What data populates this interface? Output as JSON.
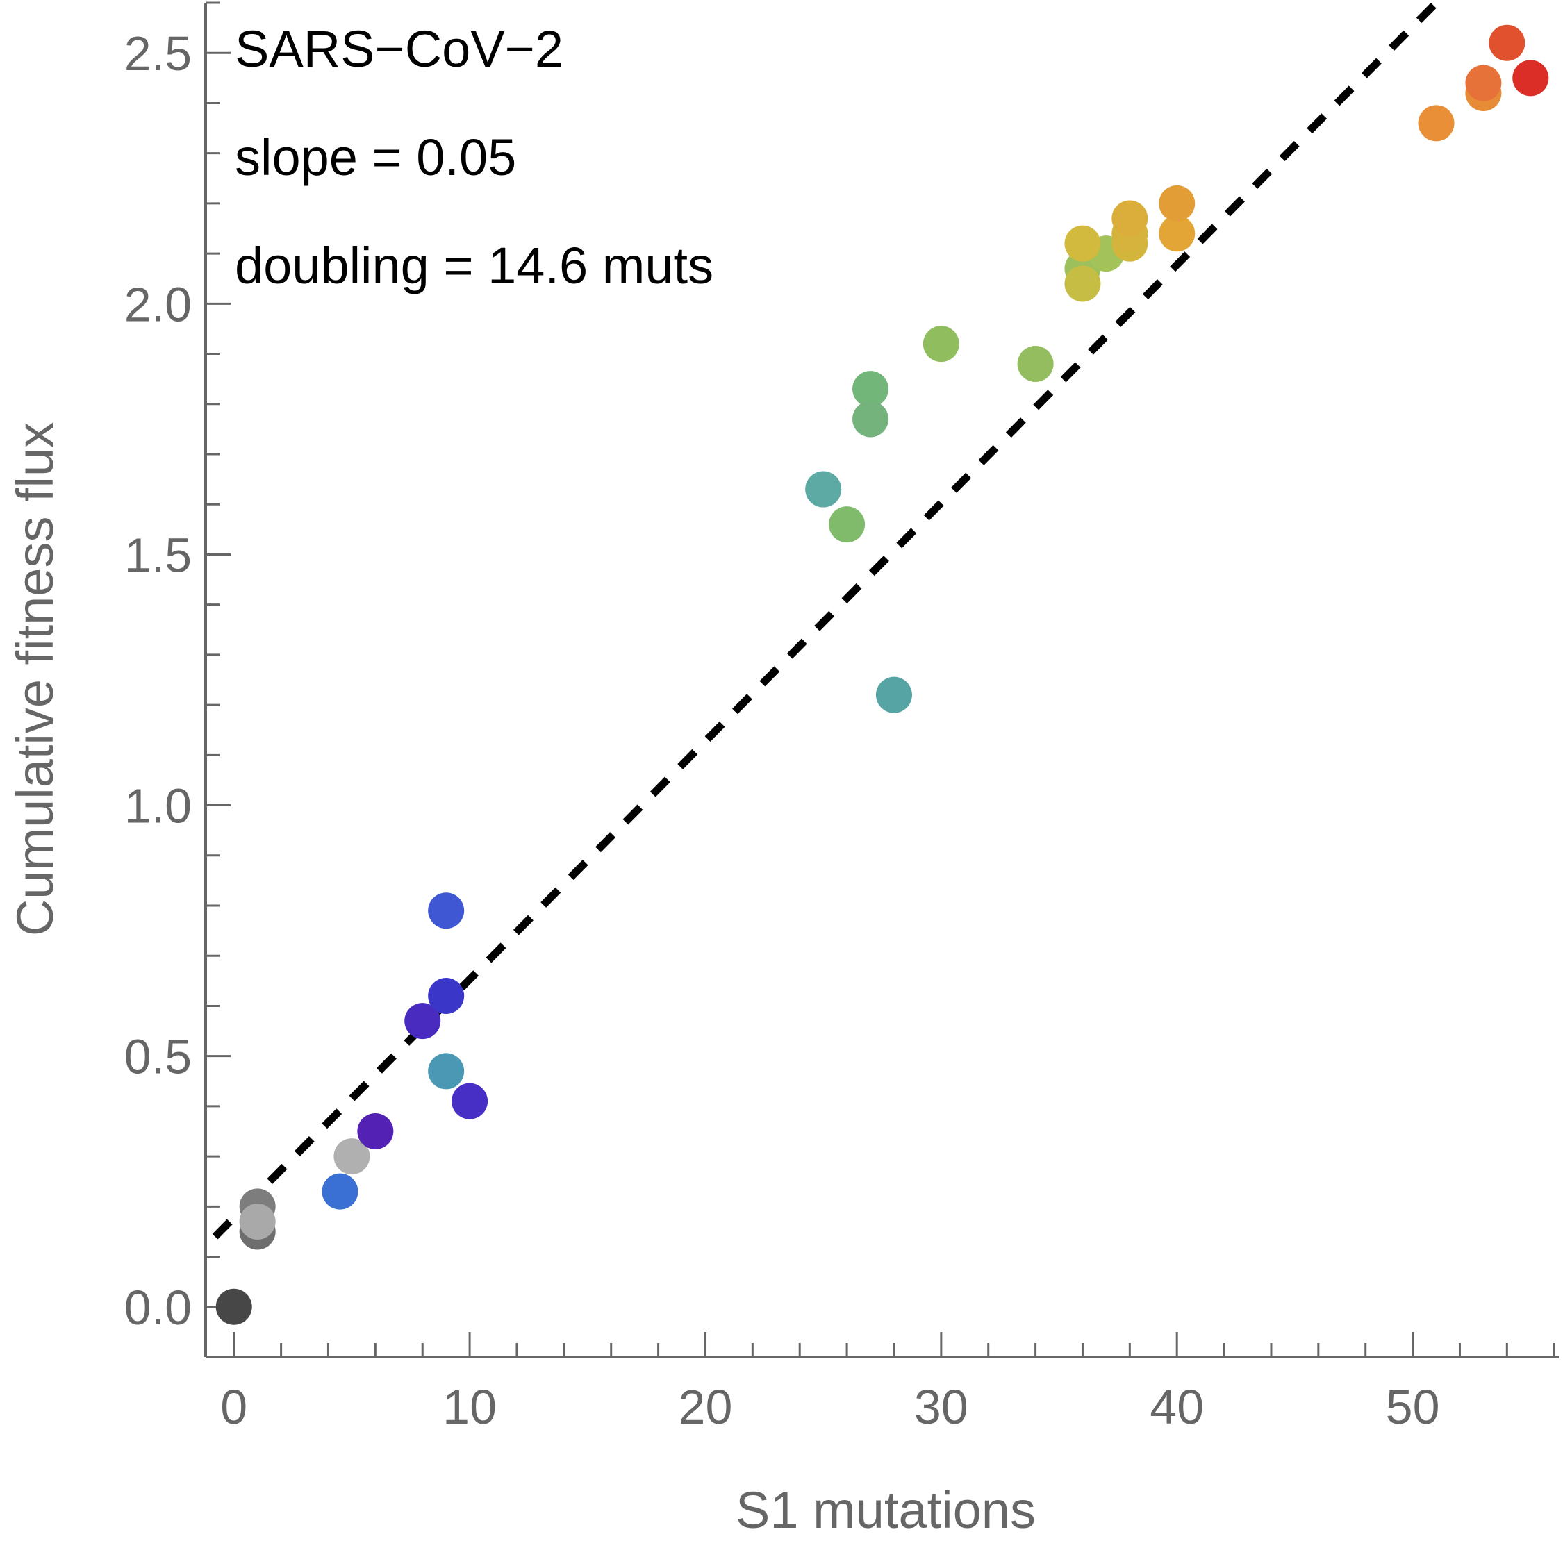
{
  "chart_data": {
    "type": "scatter",
    "title": "",
    "xlabel": "S1 mutations",
    "ylabel": "Cumulative fitness flux",
    "xlim": [
      -1.2,
      56.2
    ],
    "ylim": [
      -0.1,
      2.6
    ],
    "x_ticks": [
      "0",
      "10",
      "20",
      "30",
      "40",
      "50"
    ],
    "x_tick_values": [
      0,
      10,
      20,
      30,
      40,
      50
    ],
    "y_ticks": [
      "0.0",
      "0.5",
      "1.0",
      "1.5",
      "2.0",
      "2.5"
    ],
    "y_tick_values": [
      0.0,
      0.5,
      1.0,
      1.5,
      2.0,
      2.5
    ],
    "annotations": [
      "SARS−CoV−2",
      "slope = 0.05",
      "doubling = 14.6 muts"
    ],
    "fit_line": {
      "style": "dashed",
      "color": "#000000",
      "x": [
        -0.8,
        51.0
      ],
      "y": [
        0.14,
        2.6
      ]
    },
    "points": [
      {
        "x": 0,
        "y": 0.0,
        "color": "#474747"
      },
      {
        "x": 1,
        "y": 0.15,
        "color": "#6e6e6e"
      },
      {
        "x": 1,
        "y": 0.2,
        "color": "#7d7d7d"
      },
      {
        "x": 1,
        "y": 0.17,
        "color": "#a9a9a9"
      },
      {
        "x": 4.5,
        "y": 0.23,
        "color": "#3a6fd4"
      },
      {
        "x": 5,
        "y": 0.3,
        "color": "#b0b0b0"
      },
      {
        "x": 6,
        "y": 0.35,
        "color": "#5322b5"
      },
      {
        "x": 8,
        "y": 0.57,
        "color": "#4a2bc0"
      },
      {
        "x": 9,
        "y": 0.62,
        "color": "#3a36c8"
      },
      {
        "x": 9,
        "y": 0.79,
        "color": "#3f57d3"
      },
      {
        "x": 9,
        "y": 0.47,
        "color": "#4a98b3"
      },
      {
        "x": 10,
        "y": 0.41,
        "color": "#472ec4"
      },
      {
        "x": 25,
        "y": 1.63,
        "color": "#5da9a3"
      },
      {
        "x": 26,
        "y": 1.56,
        "color": "#80ba6b"
      },
      {
        "x": 27,
        "y": 1.83,
        "color": "#72b67a"
      },
      {
        "x": 27,
        "y": 1.77,
        "color": "#74b47c"
      },
      {
        "x": 28,
        "y": 1.22,
        "color": "#57a4a4"
      },
      {
        "x": 30,
        "y": 1.92,
        "color": "#90bd5d"
      },
      {
        "x": 34,
        "y": 1.88,
        "color": "#93bd5f"
      },
      {
        "x": 36,
        "y": 2.07,
        "color": "#9cc15c"
      },
      {
        "x": 37,
        "y": 2.1,
        "color": "#a3c35a"
      },
      {
        "x": 36,
        "y": 2.04,
        "color": "#c6bd44"
      },
      {
        "x": 36,
        "y": 2.12,
        "color": "#d2ba3e"
      },
      {
        "x": 38,
        "y": 2.12,
        "color": "#d4b53c"
      },
      {
        "x": 38,
        "y": 2.14,
        "color": "#d6b33c"
      },
      {
        "x": 38,
        "y": 2.17,
        "color": "#dbad3b"
      },
      {
        "x": 40,
        "y": 2.14,
        "color": "#e3a536"
      },
      {
        "x": 40,
        "y": 2.2,
        "color": "#e39d37"
      },
      {
        "x": 51,
        "y": 2.36,
        "color": "#e88f37"
      },
      {
        "x": 53,
        "y": 2.42,
        "color": "#e68c36"
      },
      {
        "x": 53,
        "y": 2.44,
        "color": "#e6723a"
      },
      {
        "x": 54,
        "y": 2.52,
        "color": "#e2512e"
      },
      {
        "x": 55,
        "y": 2.45,
        "color": "#db2e26"
      }
    ]
  }
}
